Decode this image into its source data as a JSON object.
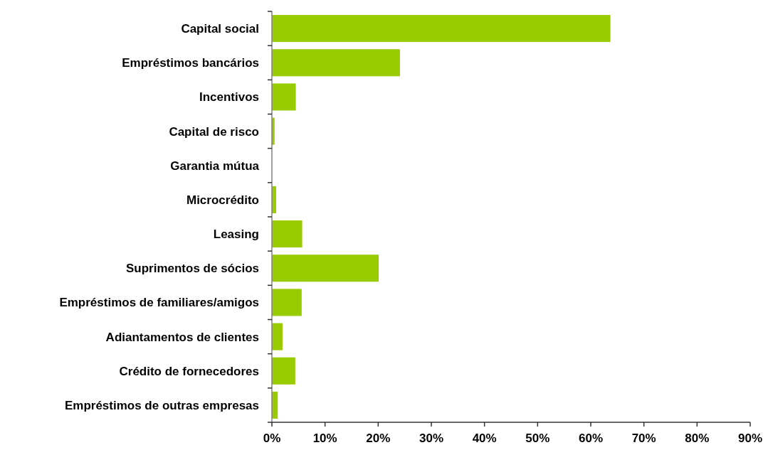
{
  "chart_data": {
    "type": "bar",
    "orientation": "horizontal",
    "categories": [
      "Capital social",
      "Empréstimos bancários",
      "Incentivos",
      "Capital de risco",
      "Garantia mútua",
      "Microcrédito",
      "Leasing",
      "Suprimentos de sócios",
      "Empréstimos de familiares/amigos",
      "Adiantamentos de clientes",
      "Crédito de fornecedores",
      "Empréstimos de outras empresas"
    ],
    "values": [
      63.7,
      24.1,
      4.5,
      0.5,
      0,
      0.8,
      5.7,
      20.1,
      5.6,
      2.0,
      4.4,
      1.1
    ],
    "color": "#99cc00",
    "xlim": [
      0,
      90
    ],
    "xticks": [
      {
        "value": 0,
        "label": "0%"
      },
      {
        "value": 10,
        "label": "10%"
      },
      {
        "value": 20,
        "label": "20%"
      },
      {
        "value": 30,
        "label": "30%"
      },
      {
        "value": 40,
        "label": "40%"
      },
      {
        "value": 50,
        "label": "50%"
      },
      {
        "value": 60,
        "label": "60%"
      },
      {
        "value": 70,
        "label": "70%"
      },
      {
        "value": 80,
        "label": "80%"
      },
      {
        "value": 90,
        "label": "90%"
      }
    ],
    "grid": false
  }
}
